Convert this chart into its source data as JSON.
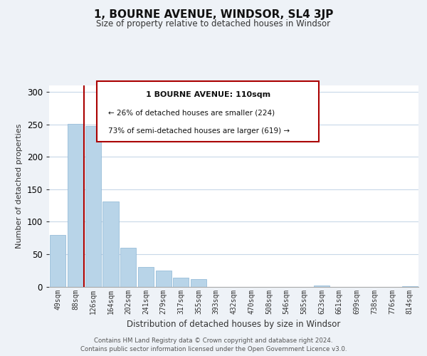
{
  "title": "1, BOURNE AVENUE, WINDSOR, SL4 3JP",
  "subtitle": "Size of property relative to detached houses in Windsor",
  "xlabel": "Distribution of detached houses by size in Windsor",
  "ylabel": "Number of detached properties",
  "categories": [
    "49sqm",
    "88sqm",
    "126sqm",
    "164sqm",
    "202sqm",
    "241sqm",
    "279sqm",
    "317sqm",
    "355sqm",
    "393sqm",
    "432sqm",
    "470sqm",
    "508sqm",
    "546sqm",
    "585sqm",
    "623sqm",
    "661sqm",
    "699sqm",
    "738sqm",
    "776sqm",
    "814sqm"
  ],
  "values": [
    80,
    251,
    248,
    131,
    60,
    30,
    25,
    14,
    11,
    0,
    0,
    0,
    0,
    0,
    0,
    2,
    0,
    0,
    0,
    0,
    1
  ],
  "bar_color": "#b8d4e8",
  "bar_edge_color": "#8ab4d4",
  "marker_label": "1 BOURNE AVENUE: 110sqm",
  "annotation_line1": "← 26% of detached houses are smaller (224)",
  "annotation_line2": "73% of semi-detached houses are larger (619) →",
  "ylim": [
    0,
    310
  ],
  "yticks": [
    0,
    50,
    100,
    150,
    200,
    250,
    300
  ],
  "vline_color": "#aa0000",
  "box_edge_color": "#aa0000",
  "footer1": "Contains HM Land Registry data © Crown copyright and database right 2024.",
  "footer2": "Contains public sector information licensed under the Open Government Licence v3.0.",
  "background_color": "#eef2f7",
  "plot_bg_color": "#ffffff",
  "grid_color": "#c8d8e8",
  "title_color": "#111111",
  "text_color": "#333333"
}
